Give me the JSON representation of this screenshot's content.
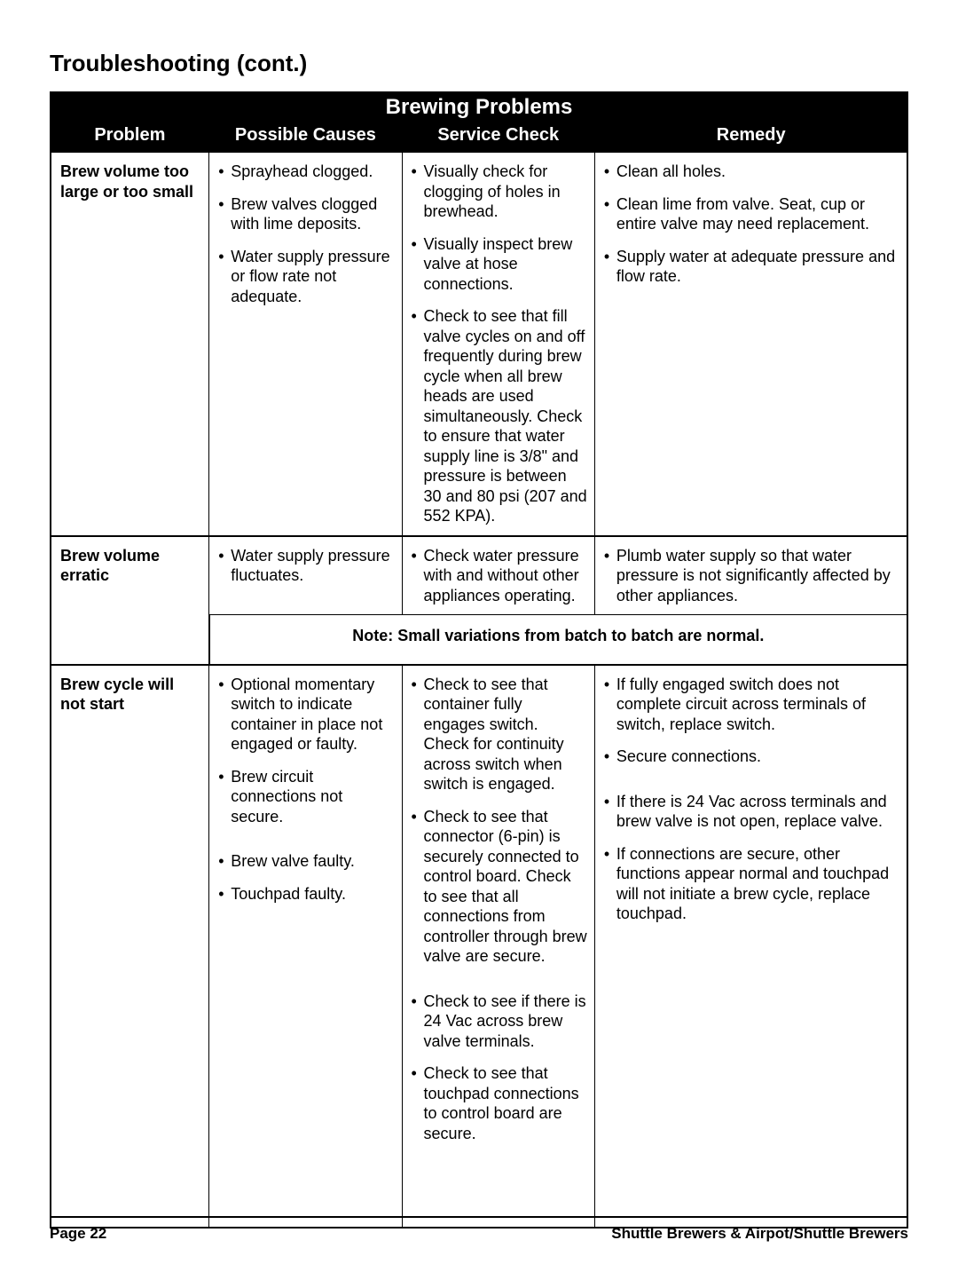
{
  "page_title": "Troubleshooting (cont.)",
  "table_title": "Brewing Problems",
  "columns": [
    "Problem",
    "Possible Causes",
    "Service Check",
    "Remedy"
  ],
  "sections": [
    {
      "problem": "Brew volume too large or too small",
      "rows": [
        {
          "cause": "Sprayhead clogged.",
          "check": "Visually check for clogging of holes in brewhead.",
          "remedy": "Clean all holes."
        },
        {
          "cause": "Brew valves clogged with lime deposits.",
          "check": "Visually inspect brew valve at hose connections.",
          "remedy": "Clean lime from valve. Seat, cup or entire valve may need replacement."
        },
        {
          "cause": "Water supply pressure or flow rate not adequate.",
          "check": "Check to see that fill valve cycles on and off frequently during brew cycle when all brew heads are used simultaneously. Check to ensure that water supply line is 3/8\" and pressure is between 30 and 80 psi (207 and 552 KPA).",
          "remedy": "Supply water at adequate pressure and flow rate."
        }
      ]
    },
    {
      "problem": "Brew volume erratic",
      "rows": [
        {
          "cause": "Water supply pressure fluctuates.",
          "check": "Check water pressure with and without other appliances operating.",
          "remedy": "Plumb water supply so that water pressure is not significantly affected by other appliances."
        }
      ],
      "note": "Note: Small variations from batch to batch are normal."
    },
    {
      "problem": "Brew cycle will not start",
      "rows": [
        {
          "cause": "Optional momentary switch to indicate container in place not engaged or faulty.",
          "check": "Check to see that container fully engages switch. Check for continuity across switch when switch is engaged.",
          "remedy": "If fully engaged switch does not complete circuit across terminals of switch, replace switch."
        },
        {
          "cause": "Brew circuit connections not secure.",
          "check": "Check to see that connector (6-pin) is securely connected to control board. Check to see that all connections from controller through brew valve are secure.",
          "remedy": "Secure connections."
        },
        {
          "cause": "Brew valve faulty.",
          "check": "Check to see if there is 24 Vac across brew valve terminals.",
          "remedy": "If there is 24 Vac across terminals and brew valve is not open, replace valve."
        },
        {
          "cause": "Touchpad faulty.",
          "check": "Check to see that touchpad connections to control board are secure.",
          "remedy": "If connections are secure, other functions appear normal and touchpad will not initiate a brew cycle, replace touchpad."
        }
      ]
    }
  ],
  "footer_left": "Page 22",
  "footer_right": "Shuttle Brewers & Airpot/Shuttle Brewers"
}
